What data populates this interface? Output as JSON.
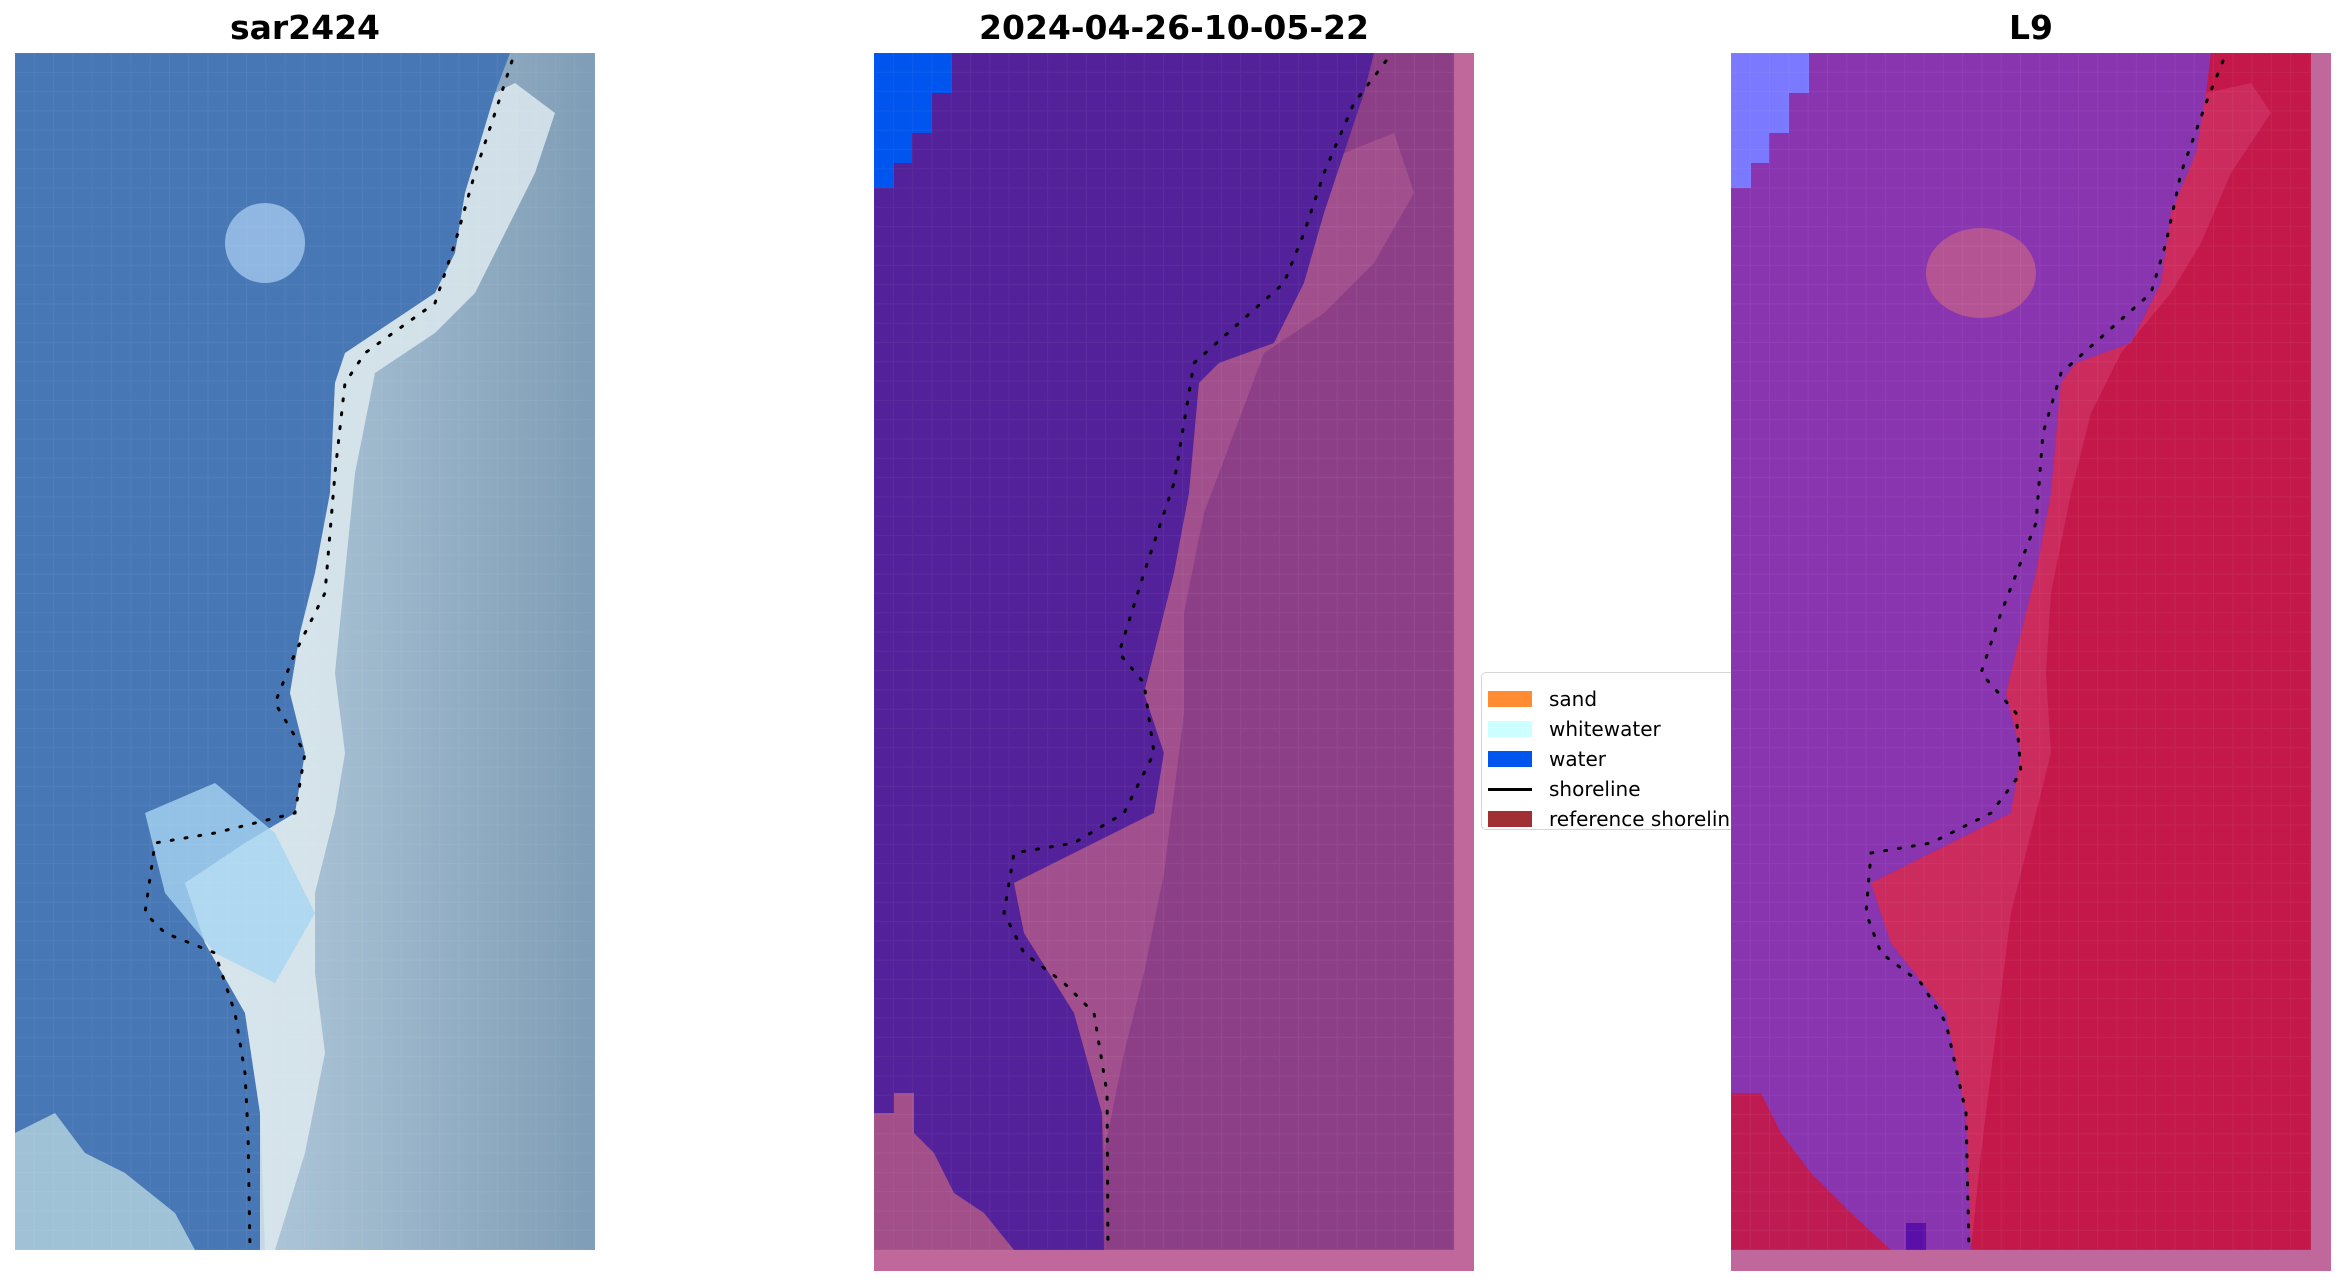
{
  "panels": {
    "left": {
      "title": "sar2424"
    },
    "middle": {
      "title": "2024-04-26-10-05-22"
    },
    "right": {
      "title": "L9"
    }
  },
  "legend": {
    "items": [
      {
        "label": "sand",
        "kind": "patch",
        "color": "#ff8c33"
      },
      {
        "label": "whitewater",
        "kind": "patch",
        "color": "#ccffff"
      },
      {
        "label": "water",
        "kind": "patch",
        "color": "#0055ee"
      },
      {
        "label": "shoreline",
        "kind": "line",
        "color": "#000000"
      },
      {
        "label": "reference shoreline",
        "kind": "patch",
        "color": "#a03033"
      }
    ]
  },
  "colors": {
    "sar_sea": "#4a7ab8",
    "sar_coast": "#c8dce8",
    "sar_land": "#8aa8c0",
    "class_water_dark": "#53219a",
    "class_land": "#a24f8a",
    "class_border": "#c0689c",
    "class_water_bright": "#0055ee",
    "l9_sea": "#8a35b0",
    "l9_land": "#c41849",
    "l9_water_bright": "#7a79ff"
  }
}
